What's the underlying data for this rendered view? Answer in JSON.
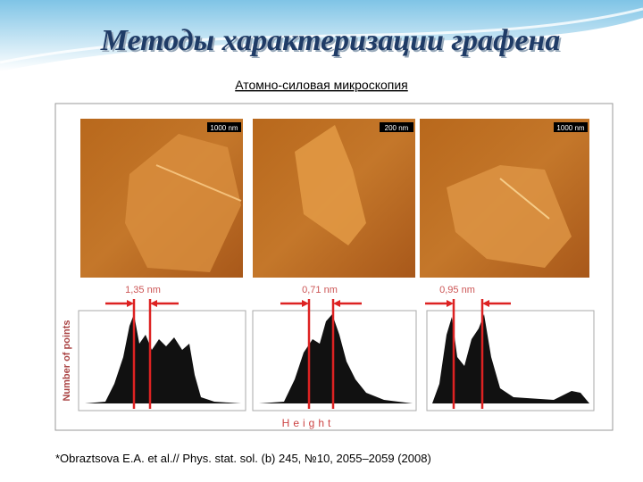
{
  "slide": {
    "title": "Методы характеризации графена",
    "subtitle": "Атомно-силовая микроскопия",
    "figure": {
      "images": [
        {
          "scale": "1000 nm"
        },
        {
          "scale": "200 nm"
        },
        {
          "scale": "1000 nm"
        }
      ],
      "steps": [
        "1,35 nm",
        "0,71 nm",
        "0,95 nm"
      ],
      "y_label": "Number of points",
      "x_label": "Height"
    },
    "citation": "*Obraztsova E.A. et al.// Phys. stat. sol. (b) 245, №10, 2055–2059 (2008)"
  }
}
